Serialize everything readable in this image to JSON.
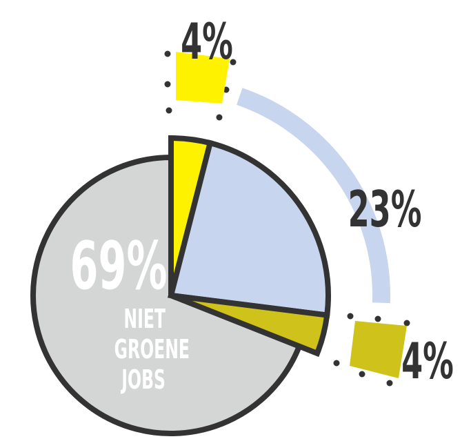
{
  "chart_data": {
    "type": "pie",
    "categories": [
      null,
      null,
      null,
      "NIET GROENE JOBS"
    ],
    "values": [
      4,
      23,
      4,
      69
    ],
    "value_labels": [
      "4%",
      "23%",
      "4%",
      "69%"
    ],
    "colors": [
      "#fff200",
      "#c8d5ee",
      "#cfc21a",
      "#d4d5d5"
    ]
  }
}
